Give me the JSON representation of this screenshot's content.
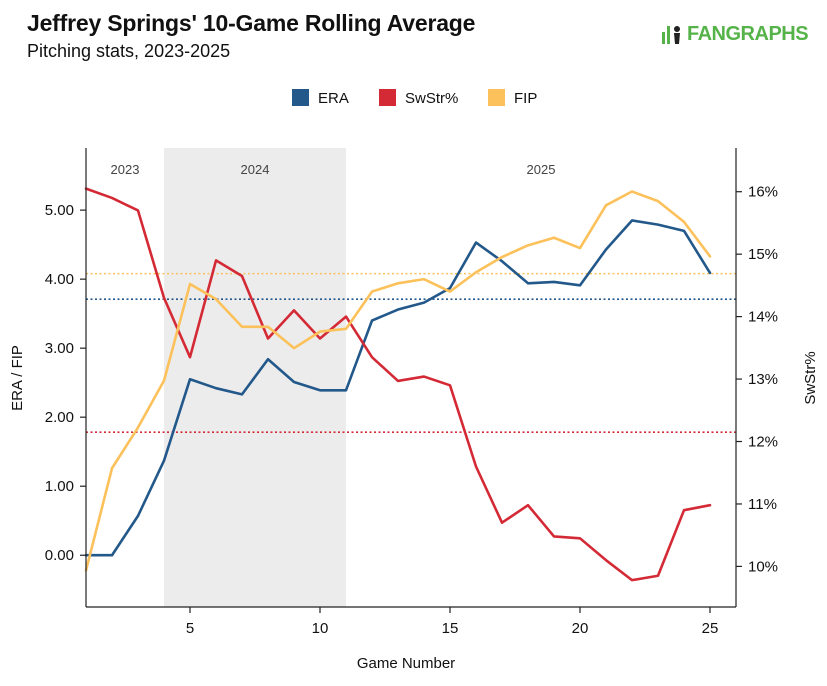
{
  "header": {
    "title": "Jeffrey Springs' 10-Game Rolling Average",
    "subtitle": "Pitching stats, 2023-2025",
    "brand": "FANGRAPHS"
  },
  "colors": {
    "era": "#23588a",
    "swstr": "#d42a36",
    "fip": "#fcc15a",
    "shade": "#ececec",
    "axis": "#222222"
  },
  "chart_data": {
    "type": "line",
    "xlabel": "Game Number",
    "ylabel_left": "ERA / FIP",
    "ylabel_right": "SwStr%",
    "xlim": [
      1,
      26
    ],
    "ylim_left": [
      -0.75,
      5.9
    ],
    "ylim_right": [
      9.35,
      16.7
    ],
    "x_ticks": [
      5,
      10,
      15,
      20,
      25
    ],
    "y_left_ticks": [
      0,
      1,
      2,
      3,
      4,
      5
    ],
    "y_left_tick_labels": [
      "0.00",
      "1.00",
      "2.00",
      "3.00",
      "4.00",
      "5.00"
    ],
    "y_right_ticks": [
      10,
      11,
      12,
      13,
      14,
      15,
      16
    ],
    "y_right_tick_labels": [
      "10%",
      "11%",
      "12%",
      "13%",
      "14%",
      "15%",
      "16%"
    ],
    "grid": false,
    "legend_position": "top-center",
    "legend": [
      "ERA",
      "SwStr%",
      "FIP"
    ],
    "seasons": [
      {
        "label": "2023",
        "start": 1,
        "end": 4,
        "shaded": false
      },
      {
        "label": "2024",
        "start": 4,
        "end": 11,
        "shaded": true
      },
      {
        "label": "2025",
        "start": 11,
        "end": 26,
        "shaded": false
      }
    ],
    "x": [
      1,
      2,
      3,
      4,
      5,
      6,
      7,
      8,
      9,
      10,
      11,
      12,
      13,
      14,
      15,
      16,
      17,
      18,
      19,
      20,
      21,
      22,
      23,
      24,
      25
    ],
    "series": [
      {
        "name": "ERA",
        "axis": "left",
        "color_key": "era",
        "values": [
          0.0,
          0.0,
          0.57,
          1.37,
          2.55,
          2.42,
          2.33,
          2.84,
          2.51,
          2.39,
          2.39,
          3.4,
          3.56,
          3.66,
          3.87,
          4.53,
          4.26,
          3.94,
          3.96,
          3.91,
          4.43,
          4.85,
          4.79,
          4.7,
          4.09
        ]
      },
      {
        "name": "SwStr%",
        "axis": "right",
        "color_key": "swstr",
        "values": [
          16.05,
          15.9,
          15.7,
          14.3,
          13.35,
          14.9,
          14.65,
          13.65,
          14.1,
          13.65,
          14.0,
          13.35,
          12.97,
          13.04,
          12.9,
          11.6,
          10.7,
          10.98,
          10.48,
          10.45,
          10.1,
          9.78,
          9.85,
          10.9,
          10.98
        ]
      },
      {
        "name": "FIP",
        "axis": "left",
        "color_key": "fip",
        "values": [
          -0.22,
          1.26,
          1.85,
          2.53,
          3.93,
          3.71,
          3.31,
          3.31,
          3.0,
          3.24,
          3.28,
          3.82,
          3.94,
          4.0,
          3.82,
          4.1,
          4.32,
          4.49,
          4.6,
          4.45,
          5.07,
          5.27,
          5.13,
          4.83,
          4.33
        ]
      }
    ],
    "reference_lines": [
      {
        "series": "FIP",
        "axis": "left",
        "value": 4.08,
        "color_key": "fip"
      },
      {
        "series": "ERA",
        "axis": "left",
        "value": 3.71,
        "color_key": "era"
      },
      {
        "series": "SwStr%",
        "axis": "right",
        "value": 12.15,
        "color_key": "swstr"
      }
    ]
  }
}
